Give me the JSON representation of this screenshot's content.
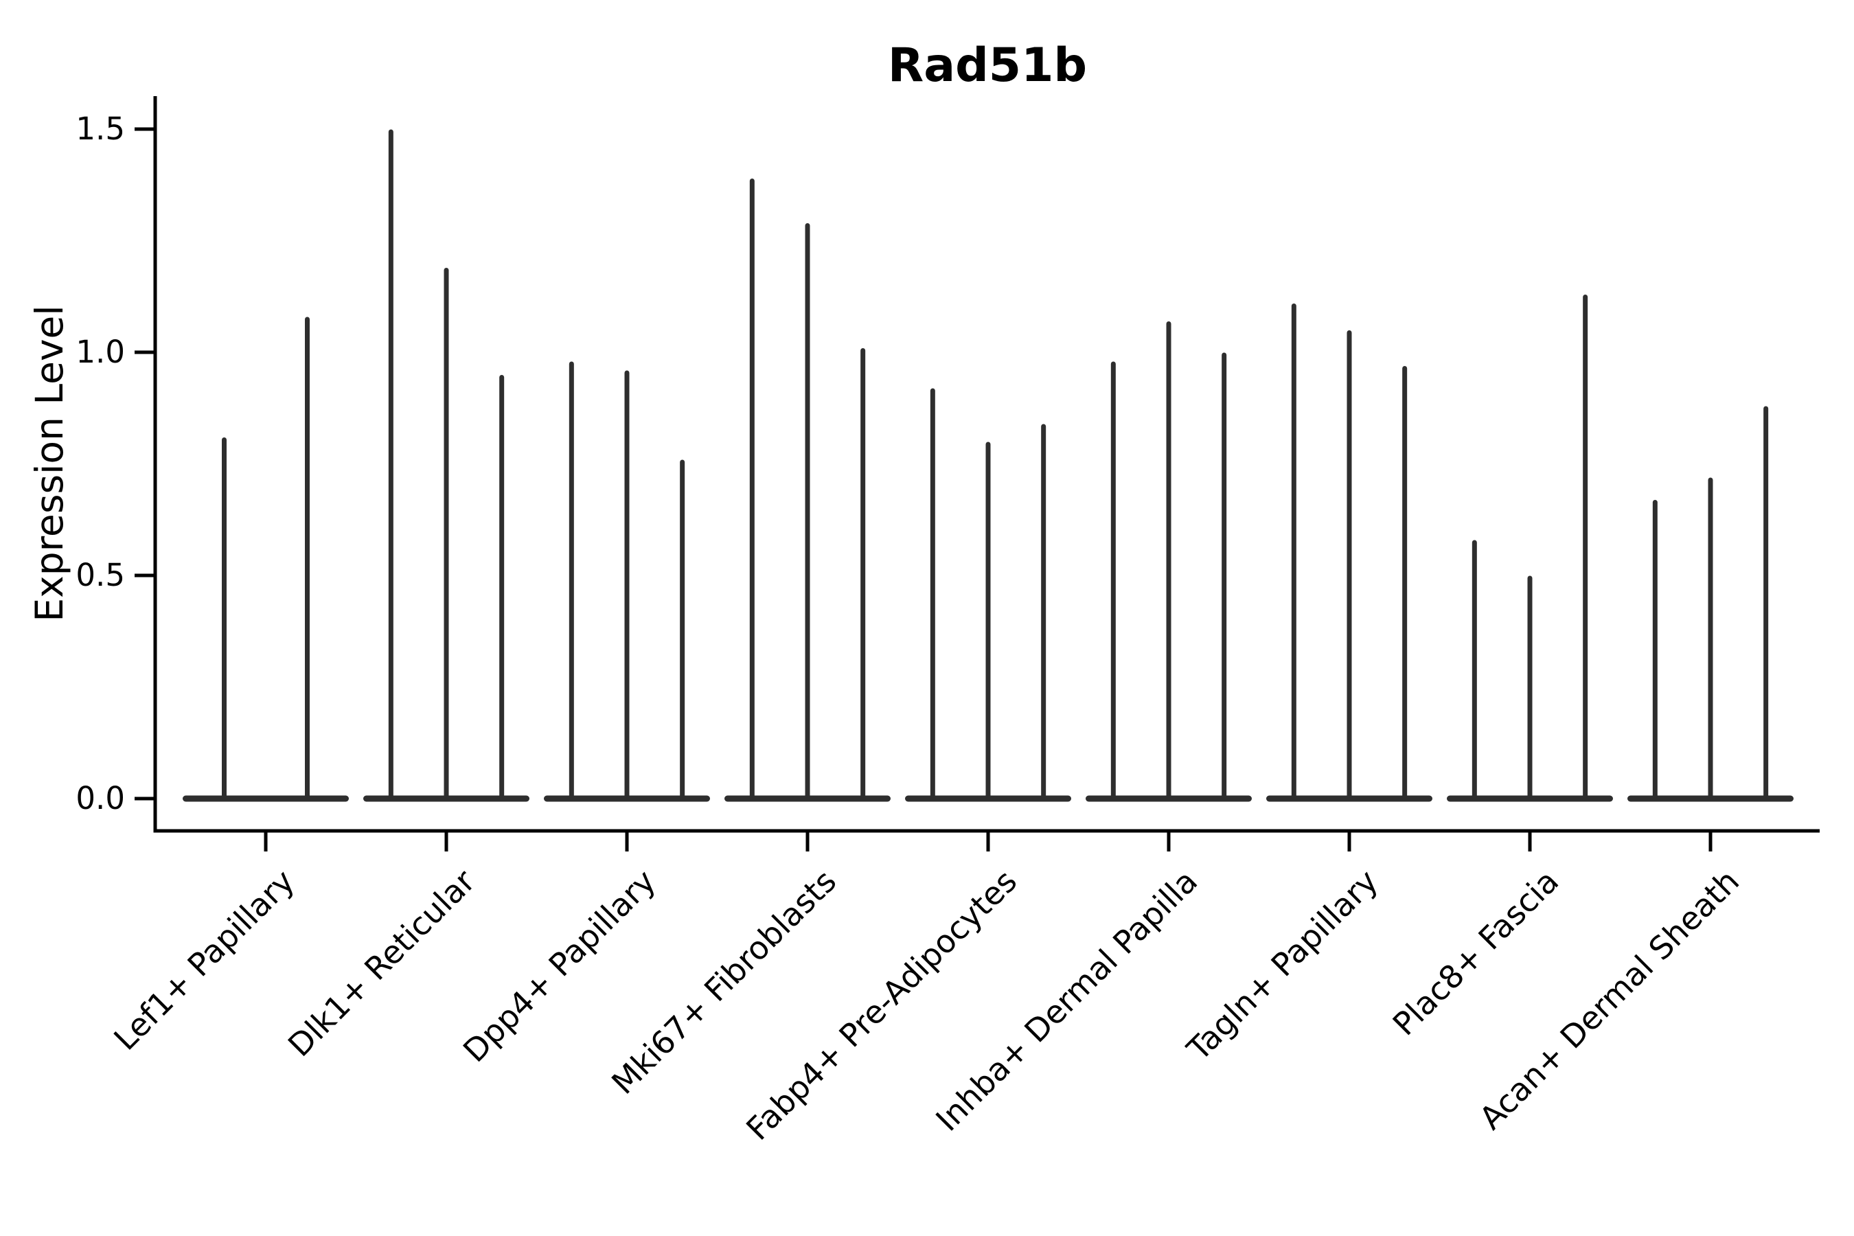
{
  "chart_data": {
    "type": "violin",
    "title": "Rad51b",
    "xlabel": "",
    "ylabel": "Expression Level",
    "ytick_labels": [
      "0.0",
      "0.5",
      "1.0",
      "1.5"
    ],
    "ytick_values": [
      0.0,
      0.5,
      1.0,
      1.5
    ],
    "ylim": [
      -0.07,
      1.57
    ],
    "grid": false,
    "legend": "none",
    "categories": [
      "Lef1+ Papillary",
      "Dlk1+ Reticular",
      "Dpp4+ Papillary",
      "Mki67+ Fibroblasts",
      "Fabp4+ Pre-Adipocytes",
      "Inhba+ Dermal Papilla",
      "Tagln+ Papillary",
      "Plac8+ Fascia",
      "Acan+ Dermal Sheath"
    ],
    "violins_per_category": [
      2,
      3,
      3,
      3,
      3,
      3,
      3,
      3,
      3
    ],
    "violin_min_expression": 0.0,
    "violin_max_expression": [
      [
        0.81,
        1.08
      ],
      [
        1.5,
        1.19,
        0.95
      ],
      [
        0.98,
        0.96,
        0.76
      ],
      [
        1.39,
        1.29,
        1.01
      ],
      [
        0.92,
        0.8,
        0.84
      ],
      [
        0.98,
        1.07,
        1.0
      ],
      [
        1.11,
        1.05,
        0.97
      ],
      [
        0.58,
        0.5,
        1.13
      ],
      [
        0.67,
        0.72,
        0.88
      ]
    ],
    "colors": {
      "violin": "#2e2e2e",
      "axis": "#000000",
      "text": "#000000",
      "background": "#ffffff"
    }
  }
}
